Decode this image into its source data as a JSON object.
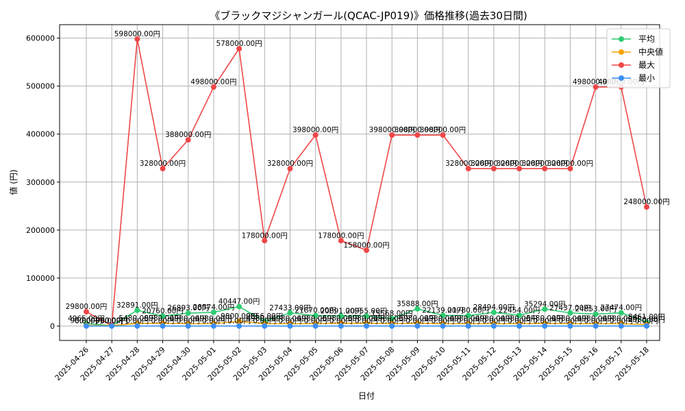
{
  "chart_data": {
    "type": "line",
    "title": "《ブラックマジシャンガール(QCAC-JP019)》価格推移(過去30日間)",
    "xlabel": "日付",
    "ylabel": "値 (円)",
    "ylim": [
      -30000,
      628000
    ],
    "yticks": [
      0,
      100000,
      200000,
      300000,
      400000,
      500000,
      600000
    ],
    "grid": true,
    "legend_position": "top-right",
    "value_suffix": "円",
    "x": [
      "2025-04-26",
      "2025-04-27",
      "2025-04-28",
      "2025-04-29",
      "2025-04-30",
      "2025-05-01",
      "2025-05-02",
      "2025-05-03",
      "2025-05-04",
      "2025-05-05",
      "2025-05-06",
      "2025-05-07",
      "2025-05-08",
      "2025-05-09",
      "2025-05-10",
      "2025-05-11",
      "2025-05-12",
      "2025-05-13",
      "2025-05-14",
      "2025-05-15",
      "2025-05-16",
      "2025-05-17",
      "2025-05-18"
    ],
    "series": [
      {
        "name": "平均",
        "color": "#2ecc71",
        "values": [
          4965,
          980,
          32891,
          20760,
          26893,
          28574,
          40447,
          9866,
          27433,
          21870,
          20891,
          20955,
          15568,
          35888,
          22139,
          21780,
          28494,
          22454,
          35294,
          27437,
          24853,
          27474,
          8461
        ]
      },
      {
        "name": "中央値",
        "color": "#f5a300",
        "values": [
          980,
          980,
          5480,
          5980,
          4980,
          4980,
          9800,
          4980,
          4980,
          4980,
          5980,
          5980,
          4980,
          5980,
          4980,
          4980,
          4980,
          4980,
          5480,
          4980,
          4980,
          4980,
          2980
        ]
      },
      {
        "name": "最大",
        "color": "#f04646",
        "values": [
          29800,
          980,
          598000,
          328000,
          388000,
          498000,
          578000,
          178000,
          328000,
          398000,
          178000,
          158000,
          398000,
          398000,
          398000,
          328000,
          328000,
          328000,
          328000,
          328000,
          498000,
          498000,
          248000
        ]
      },
      {
        "name": "最小",
        "color": "#3a8ff5",
        "values": [
          0,
          0,
          0,
          0,
          0,
          0,
          0,
          0,
          0,
          0,
          0,
          0,
          0,
          0,
          0,
          0,
          0,
          0,
          0,
          0,
          0,
          0,
          0
        ]
      }
    ]
  }
}
